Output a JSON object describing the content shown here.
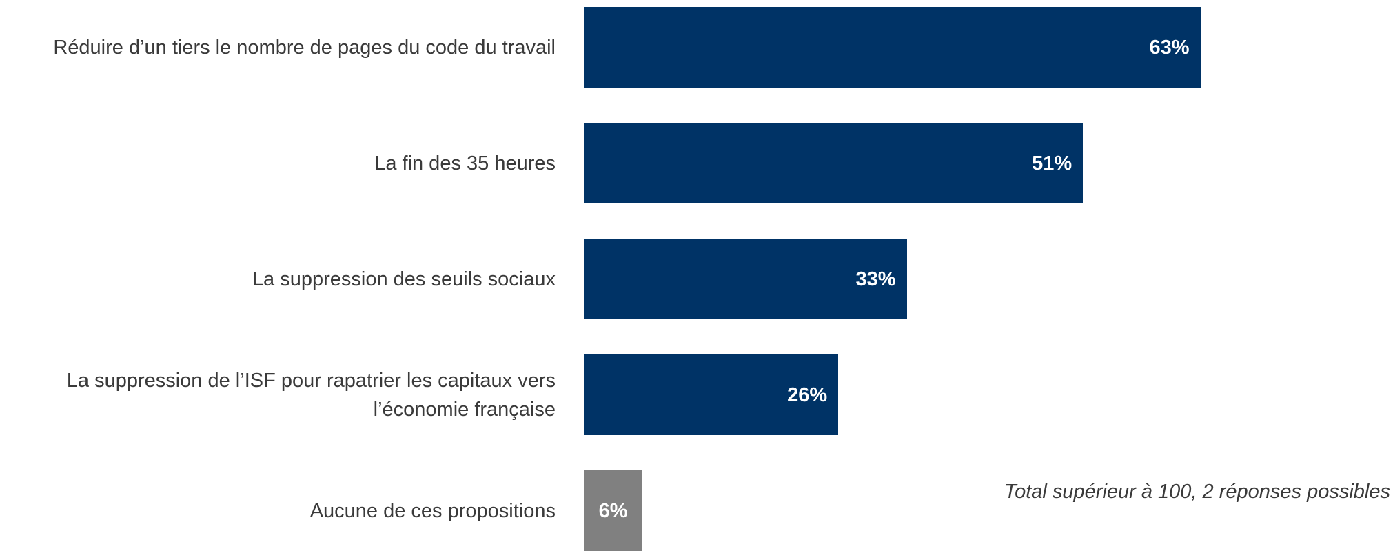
{
  "chart_data": {
    "type": "bar",
    "orientation": "horizontal",
    "categories": [
      "Réduire d’un tiers le nombre de pages du code du travail",
      "La fin des 35 heures",
      "La suppression des seuils sociaux",
      "La suppression de l’ISF pour rapatrier les capitaux vers l’économie française",
      "Aucune de ces propositions"
    ],
    "values": [
      63,
      51,
      33,
      26,
      6
    ],
    "value_labels": [
      "63%",
      "51%",
      "33%",
      "26%",
      "6%"
    ],
    "colors": [
      "#003366",
      "#003366",
      "#003366",
      "#003366",
      "#808080"
    ],
    "xlim": [
      0,
      100
    ],
    "grid": false,
    "legend": "none",
    "note": "Total supérieur à 100, 2 réponses possibles"
  }
}
